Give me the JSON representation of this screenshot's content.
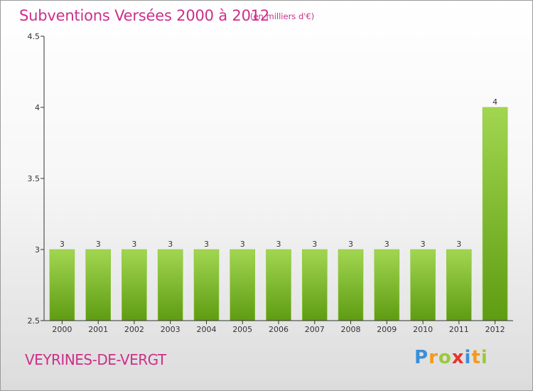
{
  "header": {
    "title": "Subventions Versées 2000 à 2012",
    "unit": "(en milliers d'€)"
  },
  "footer": {
    "place": "VEYRINES-DE-VERGT",
    "logo_letters": [
      "P",
      "r",
      "o",
      "x",
      "i",
      "t",
      "i"
    ],
    "logo_colors": [
      "#3c8fd8",
      "#f29a1f",
      "#9bc93a",
      "#e8322d",
      "#3c8fd8",
      "#f29a1f",
      "#9bc93a"
    ]
  },
  "colors": {
    "title": "#cc2f8a",
    "bar_top": "#a2d651",
    "bar_bottom": "#5e9c12",
    "axis": "#333333"
  },
  "chart_data": {
    "type": "bar",
    "categories": [
      "2000",
      "2001",
      "2002",
      "2003",
      "2004",
      "2005",
      "2006",
      "2007",
      "2008",
      "2009",
      "2010",
      "2011",
      "2012"
    ],
    "values": [
      3,
      3,
      3,
      3,
      3,
      3,
      3,
      3,
      3,
      3,
      3,
      3,
      4
    ],
    "data_labels": [
      "3",
      "3",
      "3",
      "3",
      "3",
      "3",
      "3",
      "3",
      "3",
      "3",
      "3",
      "3",
      "4"
    ],
    "y_ticks": [
      2.5,
      3,
      3.5,
      4,
      4.5
    ],
    "y_tick_labels": [
      "2.5",
      "3",
      "3.5",
      "4",
      "4.5"
    ],
    "ylim": [
      2.5,
      4.5
    ],
    "title": "Subventions Versées 2000 à 2012",
    "xlabel": "",
    "ylabel": "",
    "grid": false,
    "legend": "none"
  }
}
